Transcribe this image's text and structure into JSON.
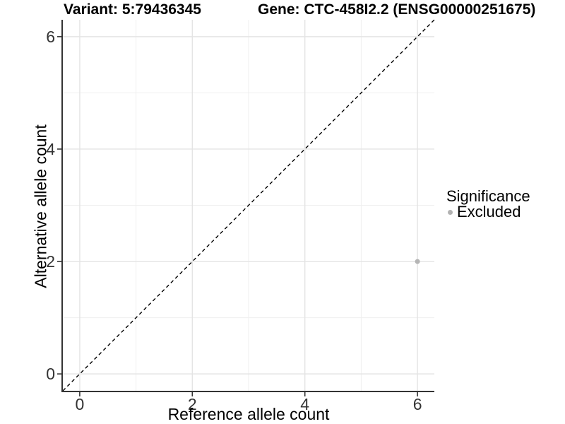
{
  "chart_data": {
    "type": "scatter",
    "title_left": "Variant: 5:79436345",
    "title_right": "Gene: CTC-458I2.2 (ENSG00000251675)",
    "xlabel": "Reference allele count",
    "ylabel": "Alternative allele count",
    "xlim": [
      -0.3,
      6.3
    ],
    "ylim": [
      -0.3,
      6.3
    ],
    "x_major_ticks": [
      0,
      2,
      4,
      6
    ],
    "y_major_ticks": [
      0,
      2,
      4,
      6
    ],
    "x_minor_gridlines": [
      1,
      3,
      5
    ],
    "y_minor_gridlines": [
      1,
      3,
      5
    ],
    "grid": true,
    "points": [
      {
        "x": 6,
        "y": 2,
        "series": "Excluded"
      }
    ],
    "identity_line": {
      "slope": 1,
      "intercept": 0,
      "style": "dashed"
    },
    "legend": {
      "title": "Significance",
      "position": "right",
      "items": [
        {
          "label": "Excluded",
          "color": "#b2b2b2"
        }
      ]
    },
    "colors": {
      "point": "#b5b5b5",
      "axis_line": "#333333",
      "tick_label": "#333333",
      "grid_major": "#e4e4e4",
      "grid_minor": "#efefef",
      "reference_line": "#000000",
      "background": "#ffffff"
    }
  }
}
